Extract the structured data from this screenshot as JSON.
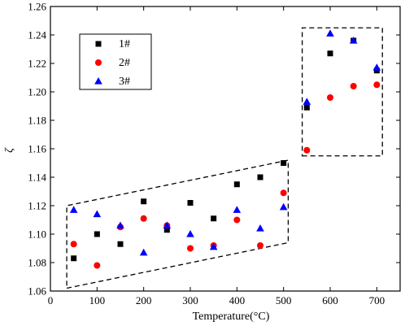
{
  "chart_data": {
    "type": "scatter",
    "xlabel": "Temperature(°C)",
    "ylabel": "ζ",
    "xlim": [
      0,
      750
    ],
    "ylim": [
      1.06,
      1.26
    ],
    "x_ticks": [
      0,
      100,
      200,
      300,
      400,
      500,
      600,
      700
    ],
    "y_ticks": [
      1.06,
      1.08,
      1.1,
      1.12,
      1.14,
      1.16,
      1.18,
      1.2,
      1.22,
      1.24,
      1.26
    ],
    "grid": false,
    "legend_position": "top-left",
    "series": [
      {
        "name": "1#",
        "marker": "square",
        "color": "#000000",
        "x": [
          50,
          100,
          150,
          200,
          250,
          300,
          350,
          400,
          450,
          500,
          550,
          600,
          650,
          700
        ],
        "y": [
          1.083,
          1.1,
          1.093,
          1.123,
          1.103,
          1.122,
          1.111,
          1.135,
          1.14,
          1.15,
          1.189,
          1.227,
          1.236,
          1.215
        ]
      },
      {
        "name": "2#",
        "marker": "circle",
        "color": "#ff0000",
        "x": [
          50,
          100,
          150,
          200,
          250,
          300,
          350,
          400,
          450,
          500,
          550,
          600,
          650,
          700
        ],
        "y": [
          1.093,
          1.078,
          1.105,
          1.111,
          1.106,
          1.09,
          1.092,
          1.11,
          1.092,
          1.129,
          1.159,
          1.196,
          1.204,
          1.205
        ]
      },
      {
        "name": "3#",
        "marker": "triangle",
        "color": "#0000ff",
        "x": [
          50,
          100,
          150,
          200,
          250,
          300,
          350,
          400,
          450,
          500,
          550,
          600,
          650,
          700
        ],
        "y": [
          1.117,
          1.114,
          1.106,
          1.087,
          1.106,
          1.1,
          1.091,
          1.117,
          1.104,
          1.119,
          1.193,
          1.241,
          1.236,
          1.217
        ]
      }
    ],
    "annotations": [
      {
        "shape": "dashed-parallelogram",
        "corners": [
          [
            35,
            1.062
          ],
          [
            510,
            1.094
          ],
          [
            510,
            1.152
          ],
          [
            35,
            1.12
          ]
        ]
      },
      {
        "shape": "dashed-rectangle",
        "corners": [
          [
            540,
            1.155
          ],
          [
            712,
            1.155
          ],
          [
            712,
            1.245
          ],
          [
            540,
            1.245
          ]
        ]
      }
    ]
  }
}
